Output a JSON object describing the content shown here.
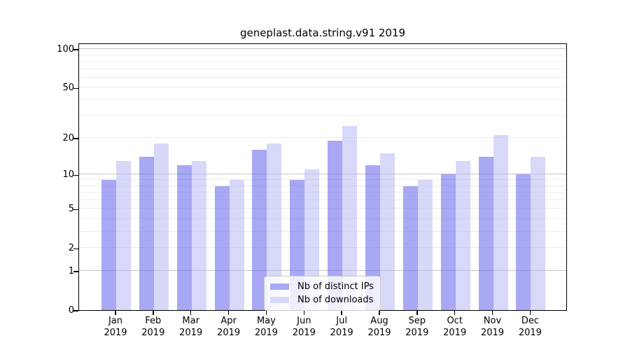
{
  "title": "geneplast.data.string.v91 2019",
  "chart_data": {
    "type": "bar",
    "title": "geneplast.data.string.v91 2019",
    "xlabel": "",
    "ylabel": "",
    "y_scale": "log10(1+value)",
    "y_ticks": [
      0,
      1,
      2,
      5,
      10,
      20,
      50,
      100
    ],
    "major_gridlines": [
      1,
      10,
      100
    ],
    "minor_gridlines": [
      2,
      3,
      4,
      5,
      6,
      7,
      8,
      9,
      20,
      30,
      40,
      50,
      60,
      70,
      80,
      90
    ],
    "categories": [
      "Jan",
      "Feb",
      "Mar",
      "Apr",
      "May",
      "Jun",
      "Jul",
      "Aug",
      "Sep",
      "Oct",
      "Nov",
      "Dec"
    ],
    "year_label": "2019",
    "series": [
      {
        "name": "Nb of distinct IPs",
        "fill": "rgba(115,115,237,0.62)",
        "legend_color": "#a8a8f4",
        "values": [
          9,
          14,
          12,
          8,
          16,
          9,
          19,
          12,
          8,
          10,
          14,
          10
        ]
      },
      {
        "name": "Nb of downloads",
        "fill": "rgba(192,192,244,0.62)",
        "legend_color": "#d8d8f8",
        "values": [
          13,
          18,
          13,
          9,
          18,
          11,
          25,
          15,
          9,
          13,
          21,
          14
        ]
      }
    ],
    "legend_position": "lower-center",
    "grid": true
  }
}
